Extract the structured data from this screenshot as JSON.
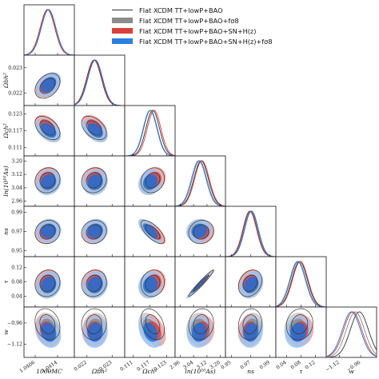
{
  "chart_data": {
    "type": "triangle-corner",
    "legend": [
      {
        "label": "Flat XCDM TT+lowP+BAO",
        "style": "line",
        "color": "#333333"
      },
      {
        "label": "Flat XCDM TT+lowP+BAO+fσ8",
        "style": "fill",
        "color": "#8c8c8c"
      },
      {
        "label": "Flat XCDM TT+lowP+BAO+SN+H(z)",
        "style": "fill",
        "color": "#d9413a"
      },
      {
        "label": "Flat XCDM TT+lowP+BAO+SN+H(z)+fσ8",
        "style": "fill",
        "color": "#2a7fe0"
      }
    ],
    "parameters": [
      {
        "name": "100θMC",
        "ticks": [
          "1.0406",
          "1.0414"
        ],
        "range": [
          1.0402,
          1.042
        ],
        "tick_values": [
          1.0406,
          1.0414
        ]
      },
      {
        "name": "Ωbh²",
        "ticks": [
          "0.022",
          "0.023"
        ],
        "range": [
          0.0215,
          0.0235
        ],
        "tick_values": [
          0.022,
          0.023
        ]
      },
      {
        "name": "Ωch²",
        "ticks": [
          "0.111",
          "0.117",
          "0.123"
        ],
        "range": [
          0.108,
          0.126
        ],
        "tick_values": [
          0.111,
          0.117,
          0.123
        ]
      },
      {
        "name": "ln(10¹⁰As)",
        "ticks": [
          "2.96",
          "3.04",
          "3.12",
          "3.20"
        ],
        "range": [
          2.93,
          3.23
        ],
        "tick_values": [
          2.96,
          3.04,
          3.12,
          3.2
        ]
      },
      {
        "name": "ns",
        "ticks": [
          "0.95",
          "0.97",
          "0.99"
        ],
        "range": [
          0.944,
          0.996
        ],
        "tick_values": [
          0.95,
          0.97,
          0.99
        ]
      },
      {
        "name": "τ",
        "ticks": [
          "0.04",
          "0.08",
          "0.12"
        ],
        "range": [
          0.01,
          0.15
        ],
        "tick_values": [
          0.04,
          0.08,
          0.12
        ]
      },
      {
        "name": "w",
        "ticks": [
          "−1.12",
          "−0.96"
        ],
        "range": [
          -1.22,
          -0.84
        ],
        "tick_values": [
          -1.12,
          -0.96
        ]
      }
    ],
    "series_means": {
      "Flat XCDM TT+lowP+BAO": [
        1.04104,
        0.02228,
        0.118,
        3.085,
        0.9695,
        0.076,
        -0.97
      ],
      "Flat XCDM TT+lowP+BAO+fσ8": [
        1.04106,
        0.02232,
        0.117,
        3.07,
        0.971,
        0.07,
        -1.0
      ],
      "Flat XCDM TT+lowP+BAO+SN+H(z)": [
        1.04104,
        0.0223,
        0.1185,
        3.09,
        0.969,
        0.078,
        -1.02
      ],
      "Flat XCDM TT+lowP+BAO+SN+H(z)+fσ8": [
        1.04108,
        0.02233,
        0.1172,
        3.075,
        0.9705,
        0.072,
        -1.03
      ]
    }
  }
}
